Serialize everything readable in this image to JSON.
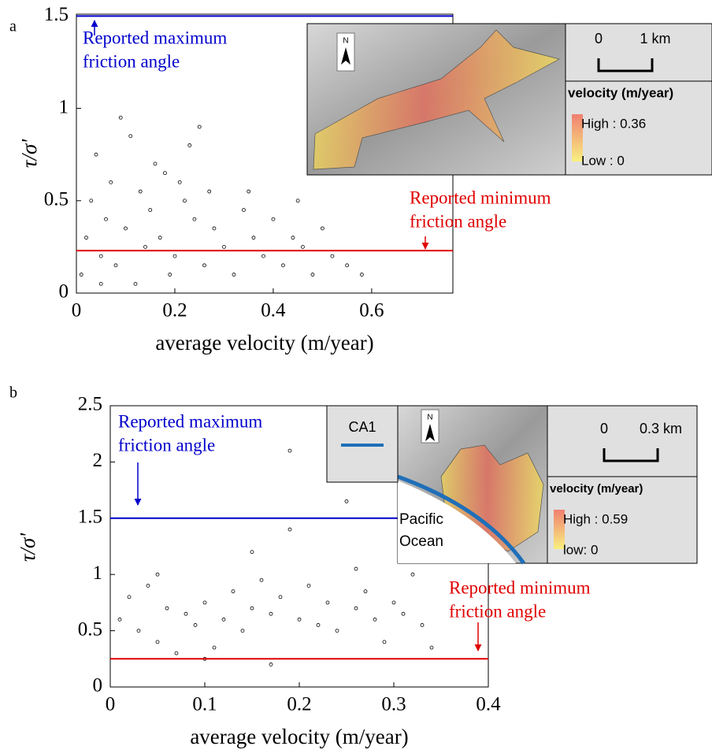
{
  "chart_data": [
    {
      "type": "scatter",
      "panel_label": "a",
      "x_label": "average velocity (m/year)",
      "y_label": "τ/σ'",
      "xlim": [
        0,
        0.765
      ],
      "ylim": [
        0,
        1.51
      ],
      "xticks": [
        0,
        0.2,
        0.4,
        0.6
      ],
      "yticks": [
        0,
        0.5,
        1,
        1.5
      ],
      "series": [
        {
          "color": "#000000",
          "x": [
            0.01,
            0.02,
            0.03,
            0.05,
            0.06,
            0.08,
            0.1,
            0.12,
            0.14,
            0.15,
            0.17,
            0.19,
            0.2,
            0.22,
            0.24,
            0.26,
            0.28,
            0.3,
            0.32,
            0.34,
            0.36,
            0.38,
            0.4,
            0.42,
            0.44,
            0.46,
            0.48,
            0.5,
            0.52,
            0.55,
            0.58,
            0.04,
            0.07,
            0.11,
            0.13,
            0.16,
            0.18,
            0.21,
            0.25,
            0.27,
            0.09,
            0.23,
            0.35,
            0.45,
            0.05
          ],
          "values": [
            0.1,
            0.3,
            0.5,
            0.2,
            0.4,
            0.15,
            0.35,
            0.05,
            0.25,
            0.45,
            0.3,
            0.1,
            0.2,
            0.5,
            0.4,
            0.15,
            0.35,
            0.25,
            0.1,
            0.45,
            0.3,
            0.2,
            0.4,
            0.15,
            0.3,
            0.25,
            0.1,
            0.35,
            0.2,
            0.15,
            0.1,
            0.75,
            0.6,
            0.85,
            0.55,
            0.7,
            0.65,
            0.6,
            0.9,
            0.55,
            0.95,
            0.8,
            0.55,
            0.5,
            0.05
          ]
        }
      ],
      "reference_lines": [
        {
          "value": 1.5,
          "color": "#0000cc",
          "label_lines": [
            "Reported maximum",
            "friction angle"
          ]
        },
        {
          "value": 0.23,
          "color": "#e00000",
          "label_lines": [
            "Reported minimum",
            "friction angle"
          ]
        }
      ],
      "inset": {
        "north": "N",
        "scale_labels": [
          "0",
          "1 km"
        ],
        "legend_title": "velocity (m/year)",
        "high": "High : 0.36",
        "low": "Low : 0"
      }
    },
    {
      "type": "scatter",
      "panel_label": "b",
      "x_label": "average velocity (m/year)",
      "y_label": "τ/σ'",
      "xlim": [
        0,
        0.4
      ],
      "ylim": [
        0,
        2.5
      ],
      "xticks": [
        0,
        0.1,
        0.2,
        0.3,
        0.4
      ],
      "yticks": [
        0,
        0.5,
        1,
        1.5,
        2,
        2.5
      ],
      "series": [
        {
          "color": "#000000",
          "x": [
            0.01,
            0.02,
            0.03,
            0.04,
            0.05,
            0.06,
            0.07,
            0.08,
            0.09,
            0.1,
            0.11,
            0.12,
            0.13,
            0.14,
            0.15,
            0.16,
            0.17,
            0.18,
            0.19,
            0.2,
            0.21,
            0.22,
            0.23,
            0.24,
            0.25,
            0.26,
            0.27,
            0.28,
            0.29,
            0.3,
            0.31,
            0.32,
            0.33,
            0.34,
            0.05,
            0.1,
            0.15,
            0.19,
            0.26,
            0.17
          ],
          "values": [
            0.6,
            0.8,
            0.5,
            0.9,
            0.4,
            0.7,
            0.3,
            0.65,
            0.55,
            0.75,
            0.35,
            0.6,
            0.85,
            0.5,
            0.7,
            0.95,
            0.65,
            0.8,
            2.1,
            0.6,
            0.9,
            0.55,
            0.75,
            0.5,
            1.65,
            0.7,
            0.85,
            0.6,
            0.4,
            0.75,
            0.65,
            1.0,
            0.55,
            0.35,
            1.0,
            0.25,
            1.2,
            1.4,
            1.05,
            0.2
          ]
        }
      ],
      "reference_lines": [
        {
          "value": 1.5,
          "color": "#0000cc",
          "label_lines": [
            "Reported maximum",
            "friction angle"
          ]
        },
        {
          "value": 0.25,
          "color": "#e00000",
          "label_lines": [
            "Reported minimum",
            "friction angle"
          ]
        }
      ],
      "inset": {
        "site": "CA1",
        "north": "N",
        "scale_labels": [
          "0",
          "0.3 km"
        ],
        "legend_title": "velocity (m/year)",
        "high": "High : 0.59",
        "low": "low: 0",
        "ocean_lines": [
          "Pacific",
          "Ocean"
        ]
      }
    }
  ]
}
